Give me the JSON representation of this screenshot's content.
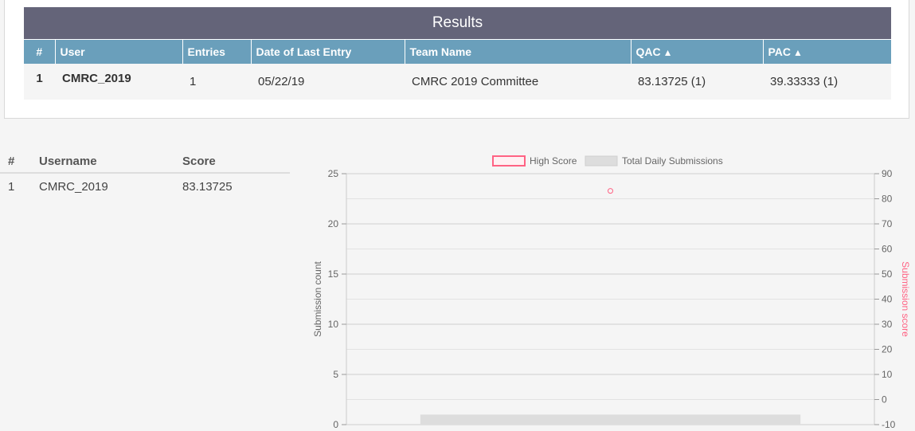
{
  "results": {
    "title": "Results",
    "columns": [
      "#",
      "User",
      "Entries",
      "Date of Last Entry",
      "Team Name",
      "QAC",
      "PAC"
    ],
    "sort_arrow": "▲",
    "rows": [
      {
        "rank": "1",
        "user": "CMRC_2019",
        "entries": "1",
        "date": "05/22/19",
        "team": "CMRC 2019 Committee",
        "qac": "83.13725 (1)",
        "pac": "39.33333 (1)"
      }
    ]
  },
  "leaderboard": {
    "columns": [
      "#",
      "Username",
      "Score"
    ],
    "rows": [
      {
        "rank": "1",
        "username": "CMRC_2019",
        "score": "83.13725"
      }
    ]
  },
  "chart_data": {
    "type": "bar",
    "legend": [
      "High Score",
      "Total Daily Submissions"
    ],
    "legend_position": "top",
    "ylabel_left": "Submission count",
    "ylabel_right": "Submission score",
    "y_left_range": [
      0,
      25
    ],
    "y_left_ticks": [
      0,
      5,
      10,
      15,
      20,
      25
    ],
    "y_right_range": [
      -10,
      90
    ],
    "y_right_ticks": [
      -10,
      0,
      10,
      20,
      30,
      40,
      50,
      60,
      70,
      80,
      90
    ],
    "grid": true,
    "series": [
      {
        "name": "Total Daily Submissions",
        "kind": "bar",
        "axis": "left",
        "values": [
          1
        ],
        "color": "#dddddd"
      },
      {
        "name": "High Score",
        "kind": "point",
        "axis": "right",
        "values": [
          83.13725
        ],
        "color": "#ff6384"
      }
    ]
  }
}
